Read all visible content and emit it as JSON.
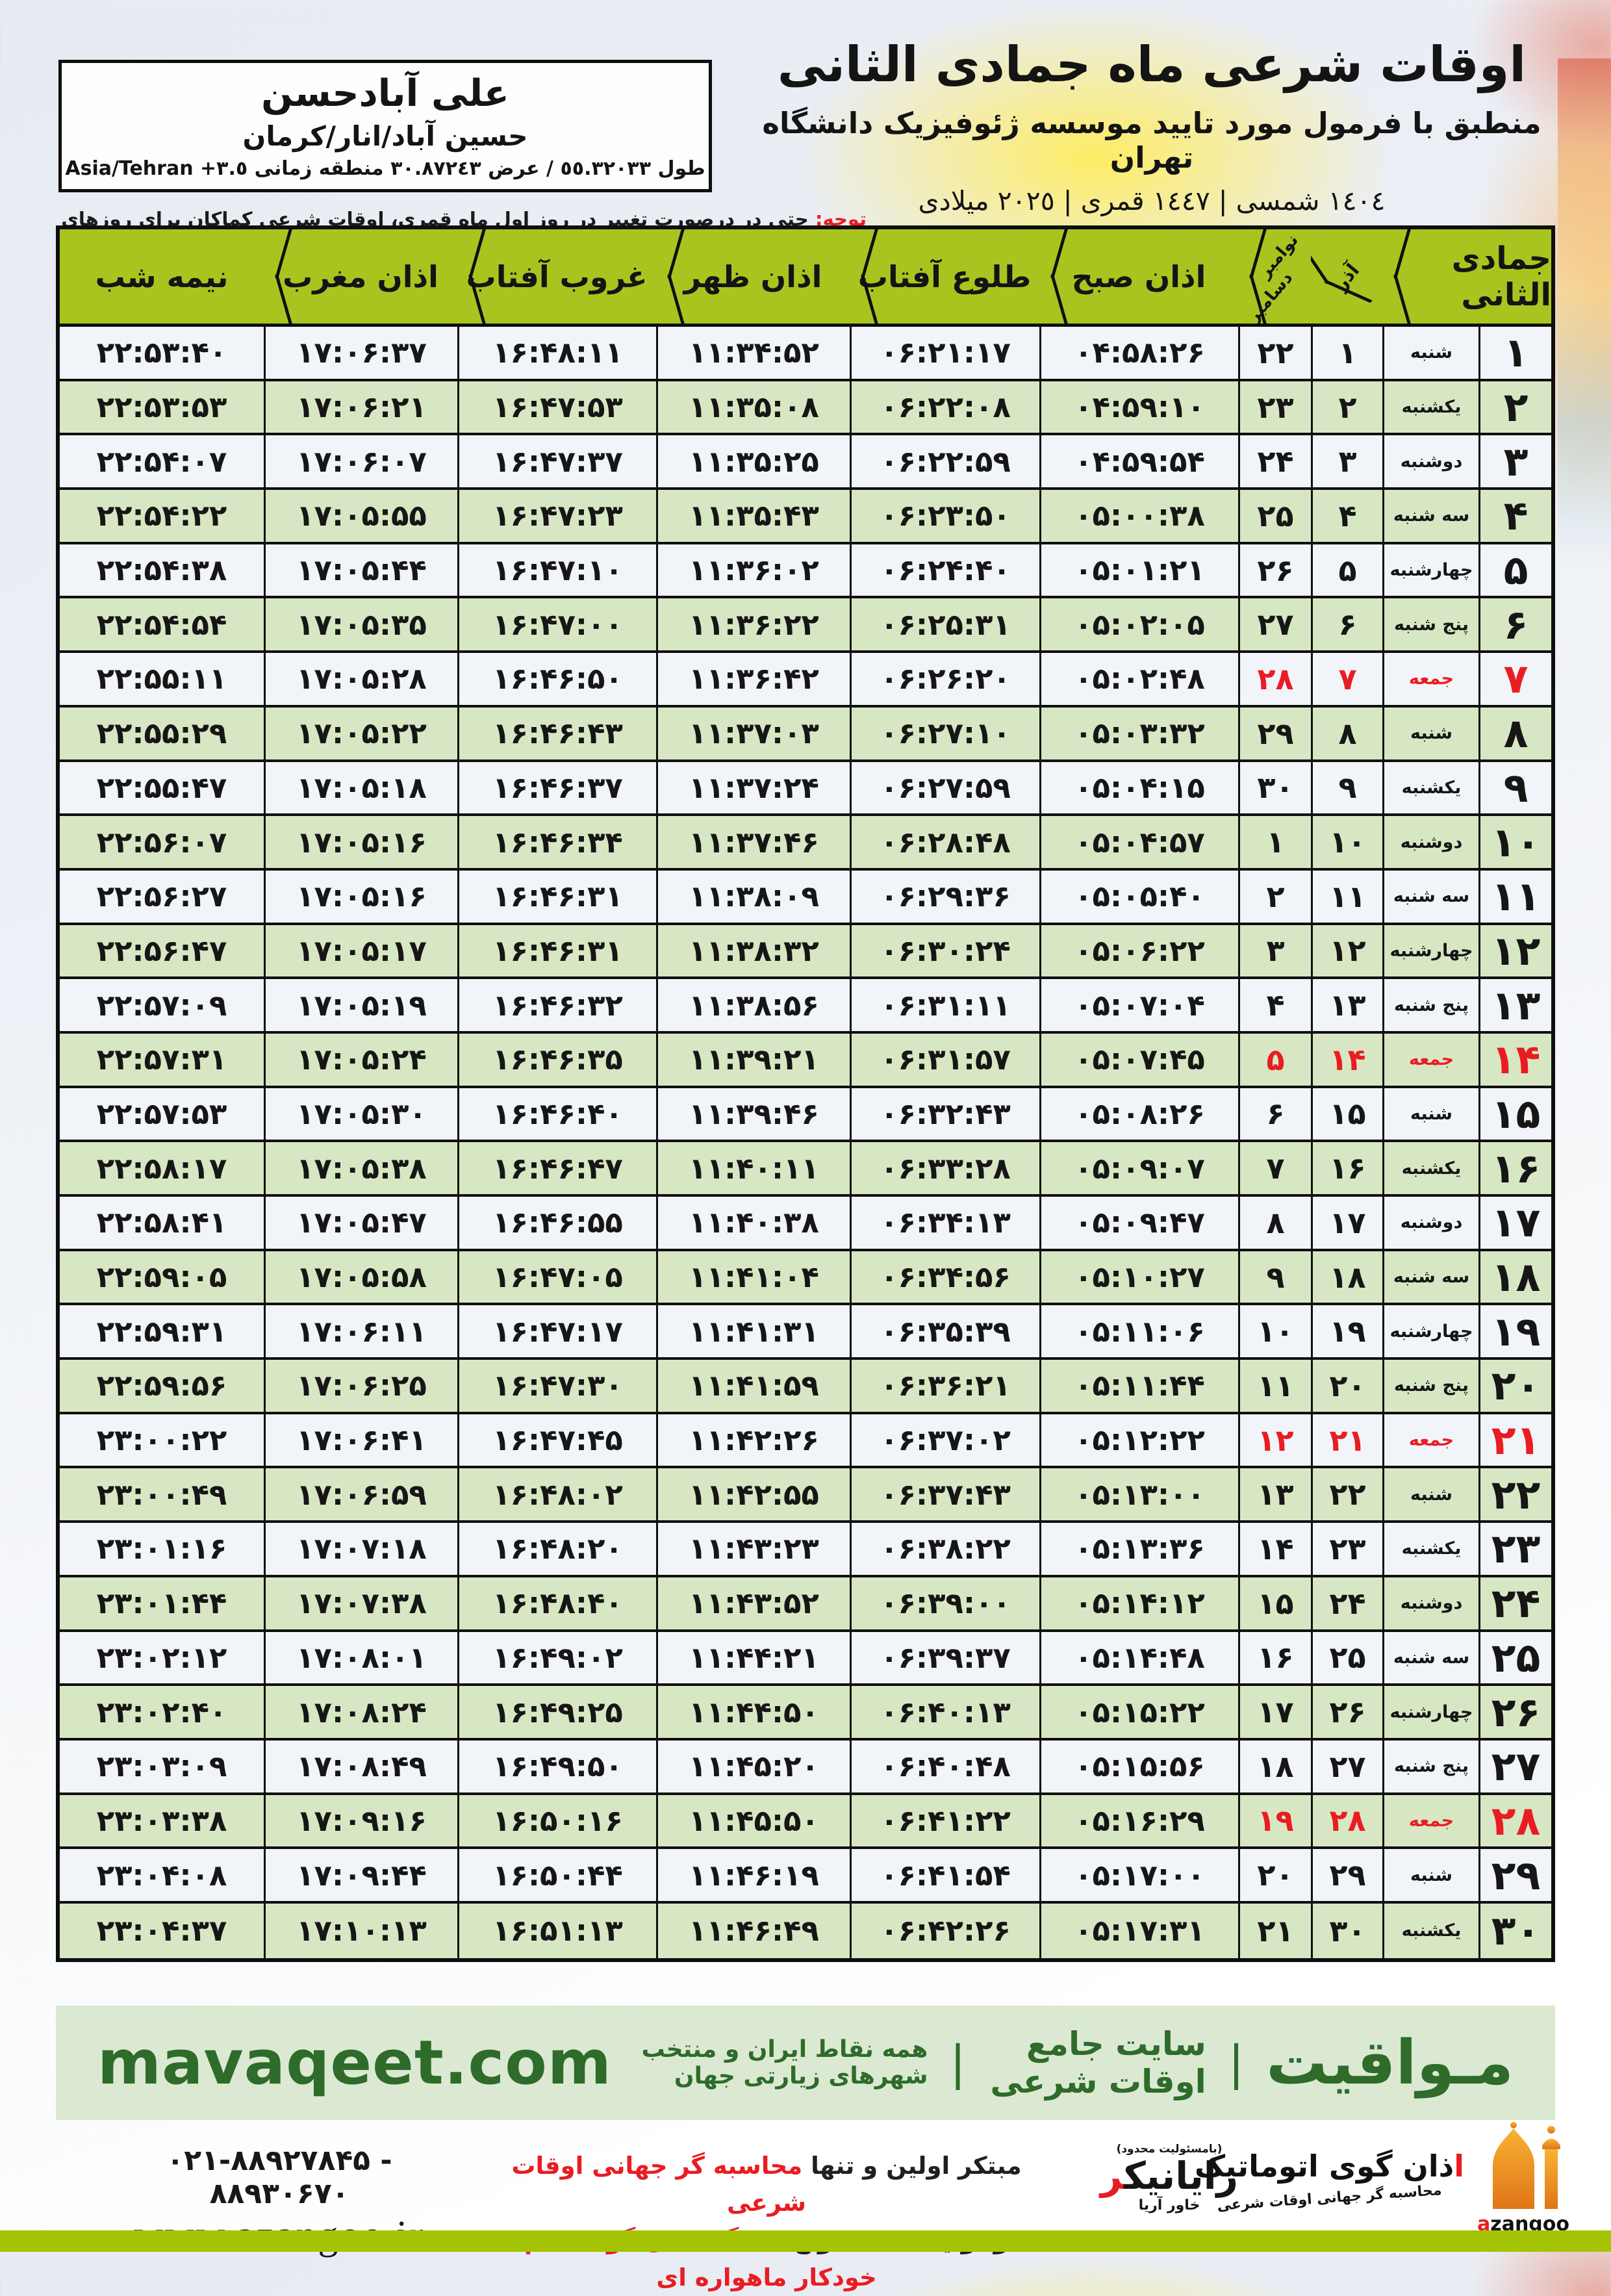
{
  "colors": {
    "red": "#ea1c23",
    "hgreen": "#aac41f",
    "rowgreen": "#d8e7c3",
    "rowlight": "#f1f4f8",
    "bandbg": "#dbe9d3",
    "bandgreen": "#2f6b2a",
    "bar": "#a4c405"
  },
  "header": {
    "title": "اوقات شرعی ماه جمادی الثانی",
    "subtitle": "منطبق با فرمول مورد تایید موسسه ژئوفیزیک دانشگاه تهران",
    "years": "١٤٠٤ شمسی | ١٤٤٧ قمری | ٢٠٢٥ میلادی"
  },
  "location": {
    "name": "علی آبادحسن",
    "region": "حسین آباد/انار/کرمان",
    "coords": "طول ٥٥.٣٢٠٣٣ / عرض ٣٠.٨٧٢٤٣ منطقه زمانی",
    "tz_offset": "+٣.٥",
    "tz_name": "Asia/Tehran"
  },
  "notice": {
    "prefix": "توجه:",
    "text": " حتی در درصورت تغییر در روز اول ماه قمری، اوقات شرعی کماکان برای روزهای شمسی و میلادی معتبر است."
  },
  "table": {
    "headers": {
      "month": "جمادی الثانی",
      "azar": "آذر",
      "november": "نوامبر",
      "december": "دسامبر",
      "sobh": "اذان صبح",
      "tolo": "طلوع آفتاب",
      "zohr": "اذان ظهر",
      "ghorob": "غروب آفتاب",
      "maghreb": "اذان مغرب",
      "nimeshab": "نیمه شب"
    },
    "rows": [
      {
        "d": "۱",
        "w": "شنبه",
        "a": "۱",
        "g": "۲۲",
        "sobh": "۰۴:۵۸:۲۶",
        "tolo": "۰۶:۲۱:۱۷",
        "zohr": "۱۱:۳۴:۵۲",
        "ghorob": "۱۶:۴۸:۱۱",
        "maghreb": "۱۷:۰۶:۳۷",
        "nim": "۲۲:۵۳:۴۰",
        "fri": false
      },
      {
        "d": "۲",
        "w": "یکشنبه",
        "a": "۲",
        "g": "۲۳",
        "sobh": "۰۴:۵۹:۱۰",
        "tolo": "۰۶:۲۲:۰۸",
        "zohr": "۱۱:۳۵:۰۸",
        "ghorob": "۱۶:۴۷:۵۳",
        "maghreb": "۱۷:۰۶:۲۱",
        "nim": "۲۲:۵۳:۵۳",
        "fri": false
      },
      {
        "d": "۳",
        "w": "دوشنبه",
        "a": "۳",
        "g": "۲۴",
        "sobh": "۰۴:۵۹:۵۴",
        "tolo": "۰۶:۲۲:۵۹",
        "zohr": "۱۱:۳۵:۲۵",
        "ghorob": "۱۶:۴۷:۳۷",
        "maghreb": "۱۷:۰۶:۰۷",
        "nim": "۲۲:۵۴:۰۷",
        "fri": false
      },
      {
        "d": "۴",
        "w": "سه شنبه",
        "a": "۴",
        "g": "۲۵",
        "sobh": "۰۵:۰۰:۳۸",
        "tolo": "۰۶:۲۳:۵۰",
        "zohr": "۱۱:۳۵:۴۳",
        "ghorob": "۱۶:۴۷:۲۳",
        "maghreb": "۱۷:۰۵:۵۵",
        "nim": "۲۲:۵۴:۲۲",
        "fri": false
      },
      {
        "d": "۵",
        "w": "چهارشنبه",
        "a": "۵",
        "g": "۲۶",
        "sobh": "۰۵:۰۱:۲۱",
        "tolo": "۰۶:۲۴:۴۰",
        "zohr": "۱۱:۳۶:۰۲",
        "ghorob": "۱۶:۴۷:۱۰",
        "maghreb": "۱۷:۰۵:۴۴",
        "nim": "۲۲:۵۴:۳۸",
        "fri": false
      },
      {
        "d": "۶",
        "w": "پنج شنبه",
        "a": "۶",
        "g": "۲۷",
        "sobh": "۰۵:۰۲:۰۵",
        "tolo": "۰۶:۲۵:۳۱",
        "zohr": "۱۱:۳۶:۲۲",
        "ghorob": "۱۶:۴۷:۰۰",
        "maghreb": "۱۷:۰۵:۳۵",
        "nim": "۲۲:۵۴:۵۴",
        "fri": false
      },
      {
        "d": "۷",
        "w": "جمعه",
        "a": "۷",
        "g": "۲۸",
        "sobh": "۰۵:۰۲:۴۸",
        "tolo": "۰۶:۲۶:۲۰",
        "zohr": "۱۱:۳۶:۴۲",
        "ghorob": "۱۶:۴۶:۵۰",
        "maghreb": "۱۷:۰۵:۲۸",
        "nim": "۲۲:۵۵:۱۱",
        "fri": true
      },
      {
        "d": "۸",
        "w": "شنبه",
        "a": "۸",
        "g": "۲۹",
        "sobh": "۰۵:۰۳:۳۲",
        "tolo": "۰۶:۲۷:۱۰",
        "zohr": "۱۱:۳۷:۰۳",
        "ghorob": "۱۶:۴۶:۴۳",
        "maghreb": "۱۷:۰۵:۲۲",
        "nim": "۲۲:۵۵:۲۹",
        "fri": false
      },
      {
        "d": "۹",
        "w": "یکشنبه",
        "a": "۹",
        "g": "۳۰",
        "sobh": "۰۵:۰۴:۱۵",
        "tolo": "۰۶:۲۷:۵۹",
        "zohr": "۱۱:۳۷:۲۴",
        "ghorob": "۱۶:۴۶:۳۷",
        "maghreb": "۱۷:۰۵:۱۸",
        "nim": "۲۲:۵۵:۴۷",
        "fri": false
      },
      {
        "d": "۱۰",
        "w": "دوشنبه",
        "a": "۱۰",
        "g": "۱",
        "sobh": "۰۵:۰۴:۵۷",
        "tolo": "۰۶:۲۸:۴۸",
        "zohr": "۱۱:۳۷:۴۶",
        "ghorob": "۱۶:۴۶:۳۴",
        "maghreb": "۱۷:۰۵:۱۶",
        "nim": "۲۲:۵۶:۰۷",
        "fri": false
      },
      {
        "d": "۱۱",
        "w": "سه شنبه",
        "a": "۱۱",
        "g": "۲",
        "sobh": "۰۵:۰۵:۴۰",
        "tolo": "۰۶:۲۹:۳۶",
        "zohr": "۱۱:۳۸:۰۹",
        "ghorob": "۱۶:۴۶:۳۱",
        "maghreb": "۱۷:۰۵:۱۶",
        "nim": "۲۲:۵۶:۲۷",
        "fri": false
      },
      {
        "d": "۱۲",
        "w": "چهارشنبه",
        "a": "۱۲",
        "g": "۳",
        "sobh": "۰۵:۰۶:۲۲",
        "tolo": "۰۶:۳۰:۲۴",
        "zohr": "۱۱:۳۸:۳۲",
        "ghorob": "۱۶:۴۶:۳۱",
        "maghreb": "۱۷:۰۵:۱۷",
        "nim": "۲۲:۵۶:۴۷",
        "fri": false
      },
      {
        "d": "۱۳",
        "w": "پنج شنبه",
        "a": "۱۳",
        "g": "۴",
        "sobh": "۰۵:۰۷:۰۴",
        "tolo": "۰۶:۳۱:۱۱",
        "zohr": "۱۱:۳۸:۵۶",
        "ghorob": "۱۶:۴۶:۳۲",
        "maghreb": "۱۷:۰۵:۱۹",
        "nim": "۲۲:۵۷:۰۹",
        "fri": false
      },
      {
        "d": "۱۴",
        "w": "جمعه",
        "a": "۱۴",
        "g": "۵",
        "sobh": "۰۵:۰۷:۴۵",
        "tolo": "۰۶:۳۱:۵۷",
        "zohr": "۱۱:۳۹:۲۱",
        "ghorob": "۱۶:۴۶:۳۵",
        "maghreb": "۱۷:۰۵:۲۴",
        "nim": "۲۲:۵۷:۳۱",
        "fri": true
      },
      {
        "d": "۱۵",
        "w": "شنبه",
        "a": "۱۵",
        "g": "۶",
        "sobh": "۰۵:۰۸:۲۶",
        "tolo": "۰۶:۳۲:۴۳",
        "zohr": "۱۱:۳۹:۴۶",
        "ghorob": "۱۶:۴۶:۴۰",
        "maghreb": "۱۷:۰۵:۳۰",
        "nim": "۲۲:۵۷:۵۳",
        "fri": false
      },
      {
        "d": "۱۶",
        "w": "یکشنبه",
        "a": "۱۶",
        "g": "۷",
        "sobh": "۰۵:۰۹:۰۷",
        "tolo": "۰۶:۳۳:۲۸",
        "zohr": "۱۱:۴۰:۱۱",
        "ghorob": "۱۶:۴۶:۴۷",
        "maghreb": "۱۷:۰۵:۳۸",
        "nim": "۲۲:۵۸:۱۷",
        "fri": false
      },
      {
        "d": "۱۷",
        "w": "دوشنبه",
        "a": "۱۷",
        "g": "۸",
        "sobh": "۰۵:۰۹:۴۷",
        "tolo": "۰۶:۳۴:۱۳",
        "zohr": "۱۱:۴۰:۳۸",
        "ghorob": "۱۶:۴۶:۵۵",
        "maghreb": "۱۷:۰۵:۴۷",
        "nim": "۲۲:۵۸:۴۱",
        "fri": false
      },
      {
        "d": "۱۸",
        "w": "سه شنبه",
        "a": "۱۸",
        "g": "۹",
        "sobh": "۰۵:۱۰:۲۷",
        "tolo": "۰۶:۳۴:۵۶",
        "zohr": "۱۱:۴۱:۰۴",
        "ghorob": "۱۶:۴۷:۰۵",
        "maghreb": "۱۷:۰۵:۵۸",
        "nim": "۲۲:۵۹:۰۵",
        "fri": false
      },
      {
        "d": "۱۹",
        "w": "چهارشنبه",
        "a": "۱۹",
        "g": "۱۰",
        "sobh": "۰۵:۱۱:۰۶",
        "tolo": "۰۶:۳۵:۳۹",
        "zohr": "۱۱:۴۱:۳۱",
        "ghorob": "۱۶:۴۷:۱۷",
        "maghreb": "۱۷:۰۶:۱۱",
        "nim": "۲۲:۵۹:۳۱",
        "fri": false
      },
      {
        "d": "۲۰",
        "w": "پنج شنبه",
        "a": "۲۰",
        "g": "۱۱",
        "sobh": "۰۵:۱۱:۴۴",
        "tolo": "۰۶:۳۶:۲۱",
        "zohr": "۱۱:۴۱:۵۹",
        "ghorob": "۱۶:۴۷:۳۰",
        "maghreb": "۱۷:۰۶:۲۵",
        "nim": "۲۲:۵۹:۵۶",
        "fri": false
      },
      {
        "d": "۲۱",
        "w": "جمعه",
        "a": "۲۱",
        "g": "۱۲",
        "sobh": "۰۵:۱۲:۲۲",
        "tolo": "۰۶:۳۷:۰۲",
        "zohr": "۱۱:۴۲:۲۶",
        "ghorob": "۱۶:۴۷:۴۵",
        "maghreb": "۱۷:۰۶:۴۱",
        "nim": "۲۳:۰۰:۲۲",
        "fri": true
      },
      {
        "d": "۲۲",
        "w": "شنبه",
        "a": "۲۲",
        "g": "۱۳",
        "sobh": "۰۵:۱۳:۰۰",
        "tolo": "۰۶:۳۷:۴۳",
        "zohr": "۱۱:۴۲:۵۵",
        "ghorob": "۱۶:۴۸:۰۲",
        "maghreb": "۱۷:۰۶:۵۹",
        "nim": "۲۳:۰۰:۴۹",
        "fri": false
      },
      {
        "d": "۲۳",
        "w": "یکشنبه",
        "a": "۲۳",
        "g": "۱۴",
        "sobh": "۰۵:۱۳:۳۶",
        "tolo": "۰۶:۳۸:۲۲",
        "zohr": "۱۱:۴۳:۲۳",
        "ghorob": "۱۶:۴۸:۲۰",
        "maghreb": "۱۷:۰۷:۱۸",
        "nim": "۲۳:۰۱:۱۶",
        "fri": false
      },
      {
        "d": "۲۴",
        "w": "دوشنبه",
        "a": "۲۴",
        "g": "۱۵",
        "sobh": "۰۵:۱۴:۱۲",
        "tolo": "۰۶:۳۹:۰۰",
        "zohr": "۱۱:۴۳:۵۲",
        "ghorob": "۱۶:۴۸:۴۰",
        "maghreb": "۱۷:۰۷:۳۸",
        "nim": "۲۳:۰۱:۴۴",
        "fri": false
      },
      {
        "d": "۲۵",
        "w": "سه شنبه",
        "a": "۲۵",
        "g": "۱۶",
        "sobh": "۰۵:۱۴:۴۸",
        "tolo": "۰۶:۳۹:۳۷",
        "zohr": "۱۱:۴۴:۲۱",
        "ghorob": "۱۶:۴۹:۰۲",
        "maghreb": "۱۷:۰۸:۰۱",
        "nim": "۲۳:۰۲:۱۲",
        "fri": false
      },
      {
        "d": "۲۶",
        "w": "چهارشنبه",
        "a": "۲۶",
        "g": "۱۷",
        "sobh": "۰۵:۱۵:۲۲",
        "tolo": "۰۶:۴۰:۱۳",
        "zohr": "۱۱:۴۴:۵۰",
        "ghorob": "۱۶:۴۹:۲۵",
        "maghreb": "۱۷:۰۸:۲۴",
        "nim": "۲۳:۰۲:۴۰",
        "fri": false
      },
      {
        "d": "۲۷",
        "w": "پنج شنبه",
        "a": "۲۷",
        "g": "۱۸",
        "sobh": "۰۵:۱۵:۵۶",
        "tolo": "۰۶:۴۰:۴۸",
        "zohr": "۱۱:۴۵:۲۰",
        "ghorob": "۱۶:۴۹:۵۰",
        "maghreb": "۱۷:۰۸:۴۹",
        "nim": "۲۳:۰۳:۰۹",
        "fri": false
      },
      {
        "d": "۲۸",
        "w": "جمعه",
        "a": "۲۸",
        "g": "۱۹",
        "sobh": "۰۵:۱۶:۲۹",
        "tolo": "۰۶:۴۱:۲۲",
        "zohr": "۱۱:۴۵:۵۰",
        "ghorob": "۱۶:۵۰:۱۶",
        "maghreb": "۱۷:۰۹:۱۶",
        "nim": "۲۳:۰۳:۳۸",
        "fri": true
      },
      {
        "d": "۲۹",
        "w": "شنبه",
        "a": "۲۹",
        "g": "۲۰",
        "sobh": "۰۵:۱۷:۰۰",
        "tolo": "۰۶:۴۱:۵۴",
        "zohr": "۱۱:۴۶:۱۹",
        "ghorob": "۱۶:۵۰:۴۴",
        "maghreb": "۱۷:۰۹:۴۴",
        "nim": "۲۳:۰۴:۰۸",
        "fri": false
      },
      {
        "d": "۳۰",
        "w": "یکشنبه",
        "a": "۳۰",
        "g": "۲۱",
        "sobh": "۰۵:۱۷:۳۱",
        "tolo": "۰۶:۴۲:۲۶",
        "zohr": "۱۱:۴۶:۴۹",
        "ghorob": "۱۶:۵۱:۱۳",
        "maghreb": "۱۷:۱۰:۱۳",
        "nim": "۲۳:۰۴:۳۷",
        "fri": false
      }
    ]
  },
  "band": {
    "brand": "مـواقیت",
    "sep": "|",
    "site": "سایت جامع اوقات شرعی",
    "coverage": "همه نقاط ایران و منتخب شهرهای زیارتی جهان",
    "domain": "mavaqeet.com"
  },
  "footer": {
    "phones": "۰۲۱-۸۸۹۲۷۸۴۵ - ۸۸۹۳۰۶۷۰",
    "site": "www.azangoo.ir",
    "line1_black": "مبتکر اولین و تنها ",
    "line1_red": "محاسبه گر جهانی اوقات شرعی",
    "line2_black": "و تولید کننده انواع ",
    "line2_red": "دستگاه اذان گوی تمام خودکار ماهواره ای",
    "rayanik_small": "(بامسئولیت محدود)",
    "rayanik_main": "رایانیک",
    "rayanik_red": "ر",
    "rayanik_sub": "خاور آریا",
    "azangoo_fa_red": "ا",
    "azangoo_fa": "ذان گوی اتوماتیک",
    "azangoo_sub": "محاسبه گر جهانی اوقات شرعی",
    "azangoo_latin_red": "a",
    "azangoo_latin": "zangoo"
  }
}
